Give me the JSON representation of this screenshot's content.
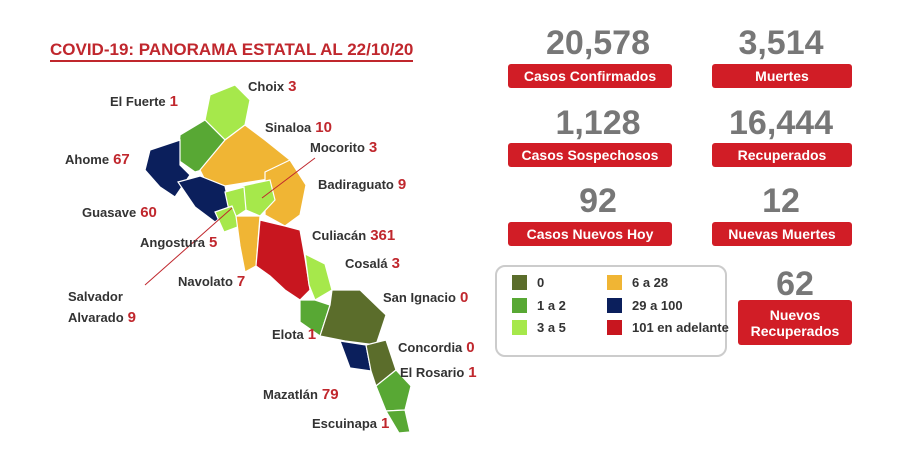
{
  "title": "COVID-19: PANORAMA ESTATAL AL 22/10/20",
  "stats": [
    {
      "value": "20,578",
      "label": "Casos Confirmados"
    },
    {
      "value": "3,514",
      "label": "Muertes"
    },
    {
      "value": "1,128",
      "label": "Casos Sospechosos"
    },
    {
      "value": "16,444",
      "label": "Recuperados"
    },
    {
      "value": "92",
      "label": "Casos Nuevos Hoy"
    },
    {
      "value": "12",
      "label": "Nuevas Muertes"
    },
    {
      "value": "62",
      "label": "Nuevos Recuperados"
    }
  ],
  "legend": [
    {
      "label": "0",
      "color": "#5b6d2b"
    },
    {
      "label": "1 a 2",
      "color": "#58a834"
    },
    {
      "label": "3 a 5",
      "color": "#a6e84b"
    },
    {
      "label": "6 a 28",
      "color": "#f0b534"
    },
    {
      "label": "29 a 100",
      "color": "#0b1f5c"
    },
    {
      "label": "101 en adelante",
      "color": "#c8161f"
    }
  ],
  "municipalities": [
    {
      "name": "Choix",
      "value": "3"
    },
    {
      "name": "El Fuerte",
      "value": "1"
    },
    {
      "name": "Sinaloa",
      "value": "10"
    },
    {
      "name": "Mocorito",
      "value": "3"
    },
    {
      "name": "Ahome",
      "value": "67"
    },
    {
      "name": "Badiraguato",
      "value": "9"
    },
    {
      "name": "Guasave",
      "value": "60"
    },
    {
      "name": "Culiacán",
      "value": "361"
    },
    {
      "name": "Angostura",
      "value": "5"
    },
    {
      "name": "Cosalá",
      "value": "3"
    },
    {
      "name": "Navolato",
      "value": "7"
    },
    {
      "name": "Salvador Alvarado",
      "value": "9"
    },
    {
      "name": "San Ignacio",
      "value": "0"
    },
    {
      "name": "Elota",
      "value": "1"
    },
    {
      "name": "Concordia",
      "value": "0"
    },
    {
      "name": "El Rosario",
      "value": "1"
    },
    {
      "name": "Mazatlán",
      "value": "79"
    },
    {
      "name": "Escuinapa",
      "value": "1"
    }
  ]
}
